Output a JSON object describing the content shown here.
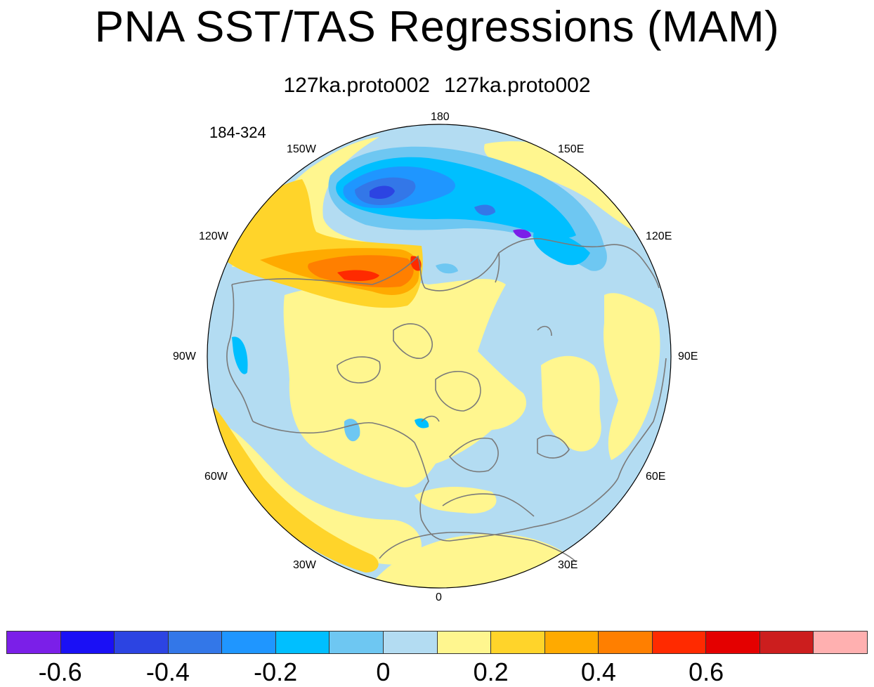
{
  "figure": {
    "title": "PNA SST/TAS Regressions (MAM)",
    "subtitle_left": "127ka.proto002",
    "subtitle_right": "127ka.proto002",
    "period_label": "184-324"
  },
  "map": {
    "projection": "north-polar-stereographic",
    "longitude_labels": {
      "lon_180": "180",
      "lon_150E": "150E",
      "lon_120E": "120E",
      "lon_90E": "90E",
      "lon_60E": "60E",
      "lon_30E": "30E",
      "lon_0": "0",
      "lon_30W": "30W",
      "lon_60W": "60W",
      "lon_90W": "90W",
      "lon_120W": "120W",
      "lon_150W": "150W"
    },
    "background_field_color": "#b3dcf2"
  },
  "colorbar": {
    "colors": [
      "#7b1fe8",
      "#1a10f5",
      "#2c44e2",
      "#3377e8",
      "#1f96ff",
      "#00bfff",
      "#6ec7f2",
      "#b3dcf2",
      "#fff68f",
      "#ffd42a",
      "#ffaa00",
      "#ff7f00",
      "#ff2a00",
      "#e40000",
      "#cc1e1e",
      "#ffb0b0"
    ],
    "tick_labels": [
      "-0.6",
      "-0.4",
      "-0.2",
      "0",
      "0.2",
      "0.4",
      "0.6"
    ],
    "tick_values": [
      -0.6,
      -0.4,
      -0.2,
      0,
      0.2,
      0.4,
      0.6
    ],
    "levels_min": -0.7,
    "levels_step": 0.1
  }
}
